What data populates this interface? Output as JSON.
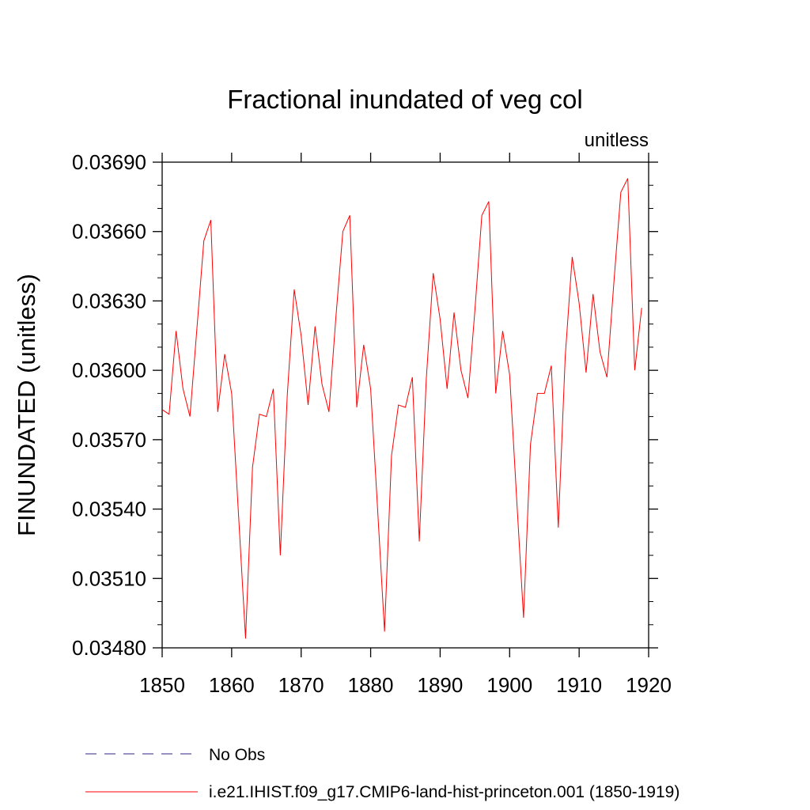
{
  "chart_data": {
    "type": "line",
    "title": "Fractional inundated of veg col",
    "units_label": "unitless",
    "ylabel": "FINUNDATED  (unitless)",
    "xlabel": "",
    "xlim": [
      1850,
      1920
    ],
    "ylim": [
      0.0348,
      0.0369
    ],
    "x_ticks": [
      1850,
      1860,
      1870,
      1880,
      1890,
      1900,
      1910,
      1920
    ],
    "x_tick_labels": [
      "1850",
      "1860",
      "1870",
      "1880",
      "1890",
      "1900",
      "1910",
      "1920"
    ],
    "y_ticks": [
      0.0348,
      0.0351,
      0.0354,
      0.0357,
      0.036,
      0.0363,
      0.0366,
      0.0369
    ],
    "y_tick_labels": [
      "0.03480",
      "0.03510",
      "0.03540",
      "0.03570",
      "0.03600",
      "0.03630",
      "0.03660",
      "0.03690"
    ],
    "grid": false,
    "legend_position": "bottom",
    "series": [
      {
        "name": "No Obs",
        "color": "#5a4fa0",
        "style": "dashed",
        "values": []
      },
      {
        "name": "i.e21.IHIST.f09_g17.CMIP6-land-hist-princeton.001 (1850-1919)",
        "color": "#ff0000",
        "style": "solid",
        "x": [
          1850,
          1851,
          1852,
          1853,
          1854,
          1855,
          1856,
          1857,
          1858,
          1859,
          1860,
          1861,
          1862,
          1863,
          1864,
          1865,
          1866,
          1867,
          1868,
          1869,
          1870,
          1871,
          1872,
          1873,
          1874,
          1875,
          1876,
          1877,
          1878,
          1879,
          1880,
          1881,
          1882,
          1883,
          1884,
          1885,
          1886,
          1887,
          1888,
          1889,
          1890,
          1891,
          1892,
          1893,
          1894,
          1895,
          1896,
          1897,
          1898,
          1899,
          1900,
          1901,
          1902,
          1903,
          1904,
          1905,
          1906,
          1907,
          1908,
          1909,
          1910,
          1911,
          1912,
          1913,
          1914,
          1915,
          1916,
          1917,
          1918,
          1919
        ],
        "values": [
          0.03583,
          0.03581,
          0.03617,
          0.03592,
          0.0358,
          0.03618,
          0.03656,
          0.03665,
          0.03582,
          0.03607,
          0.0359,
          0.03537,
          0.03484,
          0.03558,
          0.03581,
          0.0358,
          0.03592,
          0.0352,
          0.03589,
          0.03635,
          0.03615,
          0.03585,
          0.03619,
          0.03594,
          0.03582,
          0.03623,
          0.0366,
          0.03667,
          0.03584,
          0.03611,
          0.03592,
          0.0354,
          0.03487,
          0.03563,
          0.03585,
          0.03584,
          0.03597,
          0.03526,
          0.03596,
          0.03642,
          0.03622,
          0.03592,
          0.03625,
          0.036,
          0.03588,
          0.03626,
          0.03667,
          0.03673,
          0.0359,
          0.03617,
          0.03598,
          0.03545,
          0.03493,
          0.03568,
          0.0359,
          0.0359,
          0.03602,
          0.03532,
          0.03606,
          0.03649,
          0.03629,
          0.03599,
          0.03633,
          0.03608,
          0.03597,
          0.03638,
          0.03677,
          0.03683,
          0.036,
          0.03627
        ]
      }
    ]
  }
}
